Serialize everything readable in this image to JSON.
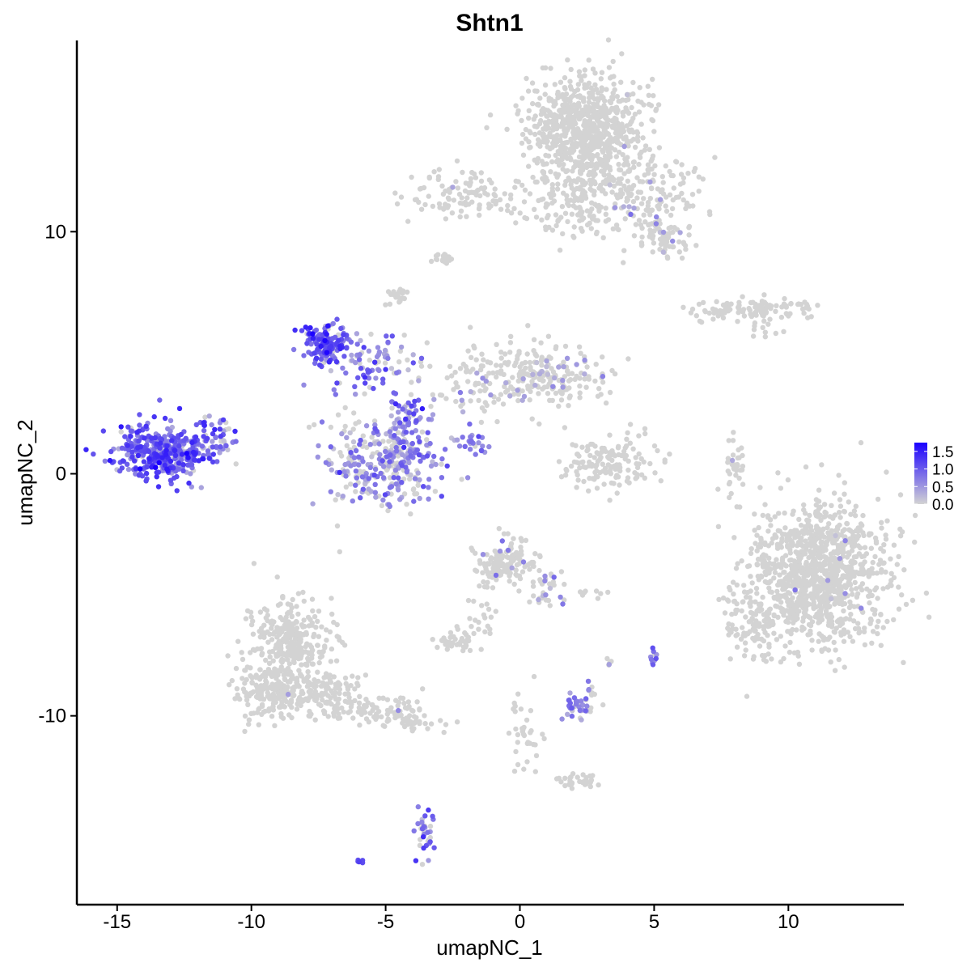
{
  "chart_data": {
    "type": "scatter",
    "title": "Shtn1",
    "xlabel": "umapNC_1",
    "ylabel": "umapNC_2",
    "xlim": [
      -16.5,
      14.3
    ],
    "ylim": [
      -17.8,
      17.9
    ],
    "x_ticks": [
      -15,
      -10,
      -5,
      0,
      5,
      10
    ],
    "x_tick_labels": [
      "-15",
      "-10",
      "-5",
      "0",
      "5",
      "10"
    ],
    "y_ticks": [
      -10,
      0,
      10
    ],
    "y_tick_labels": [
      "-10",
      "0",
      "10"
    ],
    "grid": false,
    "color_scale": {
      "low_color": "#d3d3d3",
      "high_color": "#1a00ff",
      "min": 0.0,
      "max": 1.75,
      "ticks": [
        0.0,
        0.5,
        1.0,
        1.5
      ],
      "tick_labels": [
        "0.0",
        "0.5",
        "1.0",
        "1.5"
      ],
      "legend_position": "right"
    },
    "clusters": [
      {
        "cx": -13.2,
        "cy": 0.9,
        "sx": 0.9,
        "sy": 0.55,
        "n": 420,
        "expr_mean": 0.95,
        "expr_sd": 0.35,
        "expr_frac": 0.95
      },
      {
        "cx": -11.3,
        "cy": 1.6,
        "sx": 0.45,
        "sy": 0.45,
        "n": 40,
        "expr_mean": 0.7,
        "expr_sd": 0.3,
        "expr_frac": 0.7
      },
      {
        "cx": -7.3,
        "cy": 5.4,
        "sx": 0.4,
        "sy": 0.45,
        "n": 140,
        "expr_mean": 1.0,
        "expr_sd": 0.3,
        "expr_frac": 0.95
      },
      {
        "cx": -5.6,
        "cy": 4.6,
        "sx": 0.9,
        "sy": 0.6,
        "n": 90,
        "expr_mean": 0.75,
        "expr_sd": 0.3,
        "expr_frac": 0.8
      },
      {
        "cx": -5.0,
        "cy": 0.5,
        "sx": 1.05,
        "sy": 0.9,
        "n": 340,
        "expr_mean": 0.6,
        "expr_sd": 0.3,
        "expr_frac": 0.6
      },
      {
        "cx": -4.2,
        "cy": 2.3,
        "sx": 0.35,
        "sy": 0.55,
        "n": 50,
        "expr_mean": 0.8,
        "expr_sd": 0.3,
        "expr_frac": 0.85
      },
      {
        "cx": -1.8,
        "cy": 1.2,
        "sx": 0.4,
        "sy": 0.3,
        "n": 25,
        "expr_mean": 0.75,
        "expr_sd": 0.2,
        "expr_frac": 0.9
      },
      {
        "cx": -1.2,
        "cy": 4.0,
        "sx": 1.2,
        "sy": 0.8,
        "n": 120,
        "expr_mean": 0.4,
        "expr_sd": 0.2,
        "expr_frac": 0.12
      },
      {
        "cx": 1.2,
        "cy": 4.0,
        "sx": 1.0,
        "sy": 0.6,
        "n": 160,
        "expr_mean": 0.4,
        "expr_sd": 0.2,
        "expr_frac": 0.08
      },
      {
        "cx": -4.5,
        "cy": 7.3,
        "sx": 0.2,
        "sy": 0.25,
        "n": 20,
        "expr_mean": 0,
        "expr_sd": 0,
        "expr_frac": 0
      },
      {
        "cx": -2.8,
        "cy": 8.9,
        "sx": 0.25,
        "sy": 0.12,
        "n": 20,
        "expr_mean": 0,
        "expr_sd": 0,
        "expr_frac": 0
      },
      {
        "cx": -1.8,
        "cy": 11.5,
        "sx": 1.3,
        "sy": 0.5,
        "n": 120,
        "expr_mean": 0.4,
        "expr_sd": 0.2,
        "expr_frac": 0.01
      },
      {
        "cx": 2.4,
        "cy": 14.2,
        "sx": 1.1,
        "sy": 1.05,
        "n": 800,
        "expr_mean": 0.4,
        "expr_sd": 0.2,
        "expr_frac": 0.005
      },
      {
        "cx": 2.0,
        "cy": 11.2,
        "sx": 1.0,
        "sy": 0.7,
        "n": 120,
        "expr_mean": 0.4,
        "expr_sd": 0.2,
        "expr_frac": 0.02
      },
      {
        "cx": 4.6,
        "cy": 11.6,
        "sx": 1.1,
        "sy": 0.8,
        "n": 170,
        "expr_mean": 0.4,
        "expr_sd": 0.2,
        "expr_frac": 0.05
      },
      {
        "cx": 5.5,
        "cy": 9.7,
        "sx": 0.6,
        "sy": 0.4,
        "n": 70,
        "expr_mean": 0.4,
        "expr_sd": 0.2,
        "expr_frac": 0.05
      },
      {
        "cx": 8.6,
        "cy": 6.8,
        "sx": 1.2,
        "sy": 0.2,
        "n": 110,
        "expr_mean": 0,
        "expr_sd": 0,
        "expr_frac": 0
      },
      {
        "cx": 9.0,
        "cy": 6.0,
        "sx": 0.3,
        "sy": 0.25,
        "n": 12,
        "expr_mean": 0,
        "expr_sd": 0,
        "expr_frac": 0
      },
      {
        "cx": 3.3,
        "cy": 0.4,
        "sx": 0.9,
        "sy": 0.55,
        "n": 140,
        "expr_mean": 0,
        "expr_sd": 0,
        "expr_frac": 0
      },
      {
        "cx": 8.0,
        "cy": 0.3,
        "sx": 0.15,
        "sy": 0.7,
        "n": 35,
        "expr_mean": 0.4,
        "expr_sd": 0.1,
        "expr_frac": 0.05
      },
      {
        "cx": 11.1,
        "cy": -4.2,
        "sx": 1.25,
        "sy": 1.45,
        "n": 1100,
        "expr_mean": 0.5,
        "expr_sd": 0.2,
        "expr_frac": 0.006
      },
      {
        "cx": 8.7,
        "cy": -6.2,
        "sx": 0.5,
        "sy": 0.9,
        "n": 90,
        "expr_mean": 0.4,
        "expr_sd": 0.2,
        "expr_frac": 0.01
      },
      {
        "cx": -0.5,
        "cy": -3.7,
        "sx": 0.6,
        "sy": 0.45,
        "n": 130,
        "expr_mean": 0.6,
        "expr_sd": 0.2,
        "expr_frac": 0.05
      },
      {
        "cx": 1.0,
        "cy": -4.7,
        "sx": 0.4,
        "sy": 0.5,
        "n": 30,
        "expr_mean": 0.6,
        "expr_sd": 0.2,
        "expr_frac": 0.25
      },
      {
        "cx": -1.3,
        "cy": -5.7,
        "sx": 0.35,
        "sy": 0.7,
        "n": 25,
        "expr_mean": 0.4,
        "expr_sd": 0.2,
        "expr_frac": 0.04
      },
      {
        "cx": -2.4,
        "cy": -6.9,
        "sx": 0.35,
        "sy": 0.2,
        "n": 40,
        "expr_mean": 0,
        "expr_sd": 0,
        "expr_frac": 0
      },
      {
        "cx": 2.7,
        "cy": -5.0,
        "sx": 0.3,
        "sy": 0.1,
        "n": 8,
        "expr_mean": 0,
        "expr_sd": 0,
        "expr_frac": 0
      },
      {
        "cx": -8.6,
        "cy": -6.8,
        "sx": 0.75,
        "sy": 0.85,
        "n": 280,
        "expr_mean": 0.4,
        "expr_sd": 0.1,
        "expr_frac": 0.004
      },
      {
        "cx": -9.3,
        "cy": -9.0,
        "sx": 0.65,
        "sy": 0.6,
        "n": 220,
        "expr_mean": 0.4,
        "expr_sd": 0.1,
        "expr_frac": 0.004
      },
      {
        "cx": -7.3,
        "cy": -9.0,
        "sx": 0.6,
        "sy": 0.5,
        "n": 130,
        "expr_mean": 0.4,
        "expr_sd": 0.1,
        "expr_frac": 0.01
      },
      {
        "cx": -5.2,
        "cy": -9.8,
        "sx": 0.9,
        "sy": 0.35,
        "n": 90,
        "expr_mean": 0.5,
        "expr_sd": 0.1,
        "expr_frac": 0.02
      },
      {
        "cx": -3.9,
        "cy": -10.3,
        "sx": 0.3,
        "sy": 0.15,
        "n": 20,
        "expr_mean": 0,
        "expr_sd": 0,
        "expr_frac": 0
      },
      {
        "cx": 2.3,
        "cy": -9.6,
        "sx": 0.35,
        "sy": 0.25,
        "n": 40,
        "expr_mean": 0.6,
        "expr_sd": 0.2,
        "expr_frac": 0.7
      },
      {
        "cx": 2.5,
        "cy": -8.8,
        "sx": 0.15,
        "sy": 0.25,
        "n": 8,
        "expr_mean": 0.6,
        "expr_sd": 0.1,
        "expr_frac": 0.5
      },
      {
        "cx": 5.0,
        "cy": -7.5,
        "sx": 0.1,
        "sy": 0.25,
        "n": 10,
        "expr_mean": 0.8,
        "expr_sd": 0.2,
        "expr_frac": 0.95
      },
      {
        "cx": 3.4,
        "cy": -7.8,
        "sx": 0.1,
        "sy": 0.12,
        "n": 5,
        "expr_mean": 0.5,
        "expr_sd": 0.1,
        "expr_frac": 0.3
      },
      {
        "cx": 0.2,
        "cy": -11.0,
        "sx": 0.3,
        "sy": 0.9,
        "n": 35,
        "expr_mean": 0,
        "expr_sd": 0,
        "expr_frac": 0
      },
      {
        "cx": 2.2,
        "cy": -12.7,
        "sx": 0.4,
        "sy": 0.15,
        "n": 30,
        "expr_mean": 0,
        "expr_sd": 0,
        "expr_frac": 0
      },
      {
        "cx": -3.5,
        "cy": -14.8,
        "sx": 0.17,
        "sy": 0.5,
        "n": 35,
        "expr_mean": 0.8,
        "expr_sd": 0.25,
        "expr_frac": 0.75
      },
      {
        "cx": -6.0,
        "cy": -16.0,
        "sx": 0.08,
        "sy": 0.05,
        "n": 5,
        "expr_mean": 1.0,
        "expr_sd": 0.1,
        "expr_frac": 1.0
      }
    ]
  }
}
